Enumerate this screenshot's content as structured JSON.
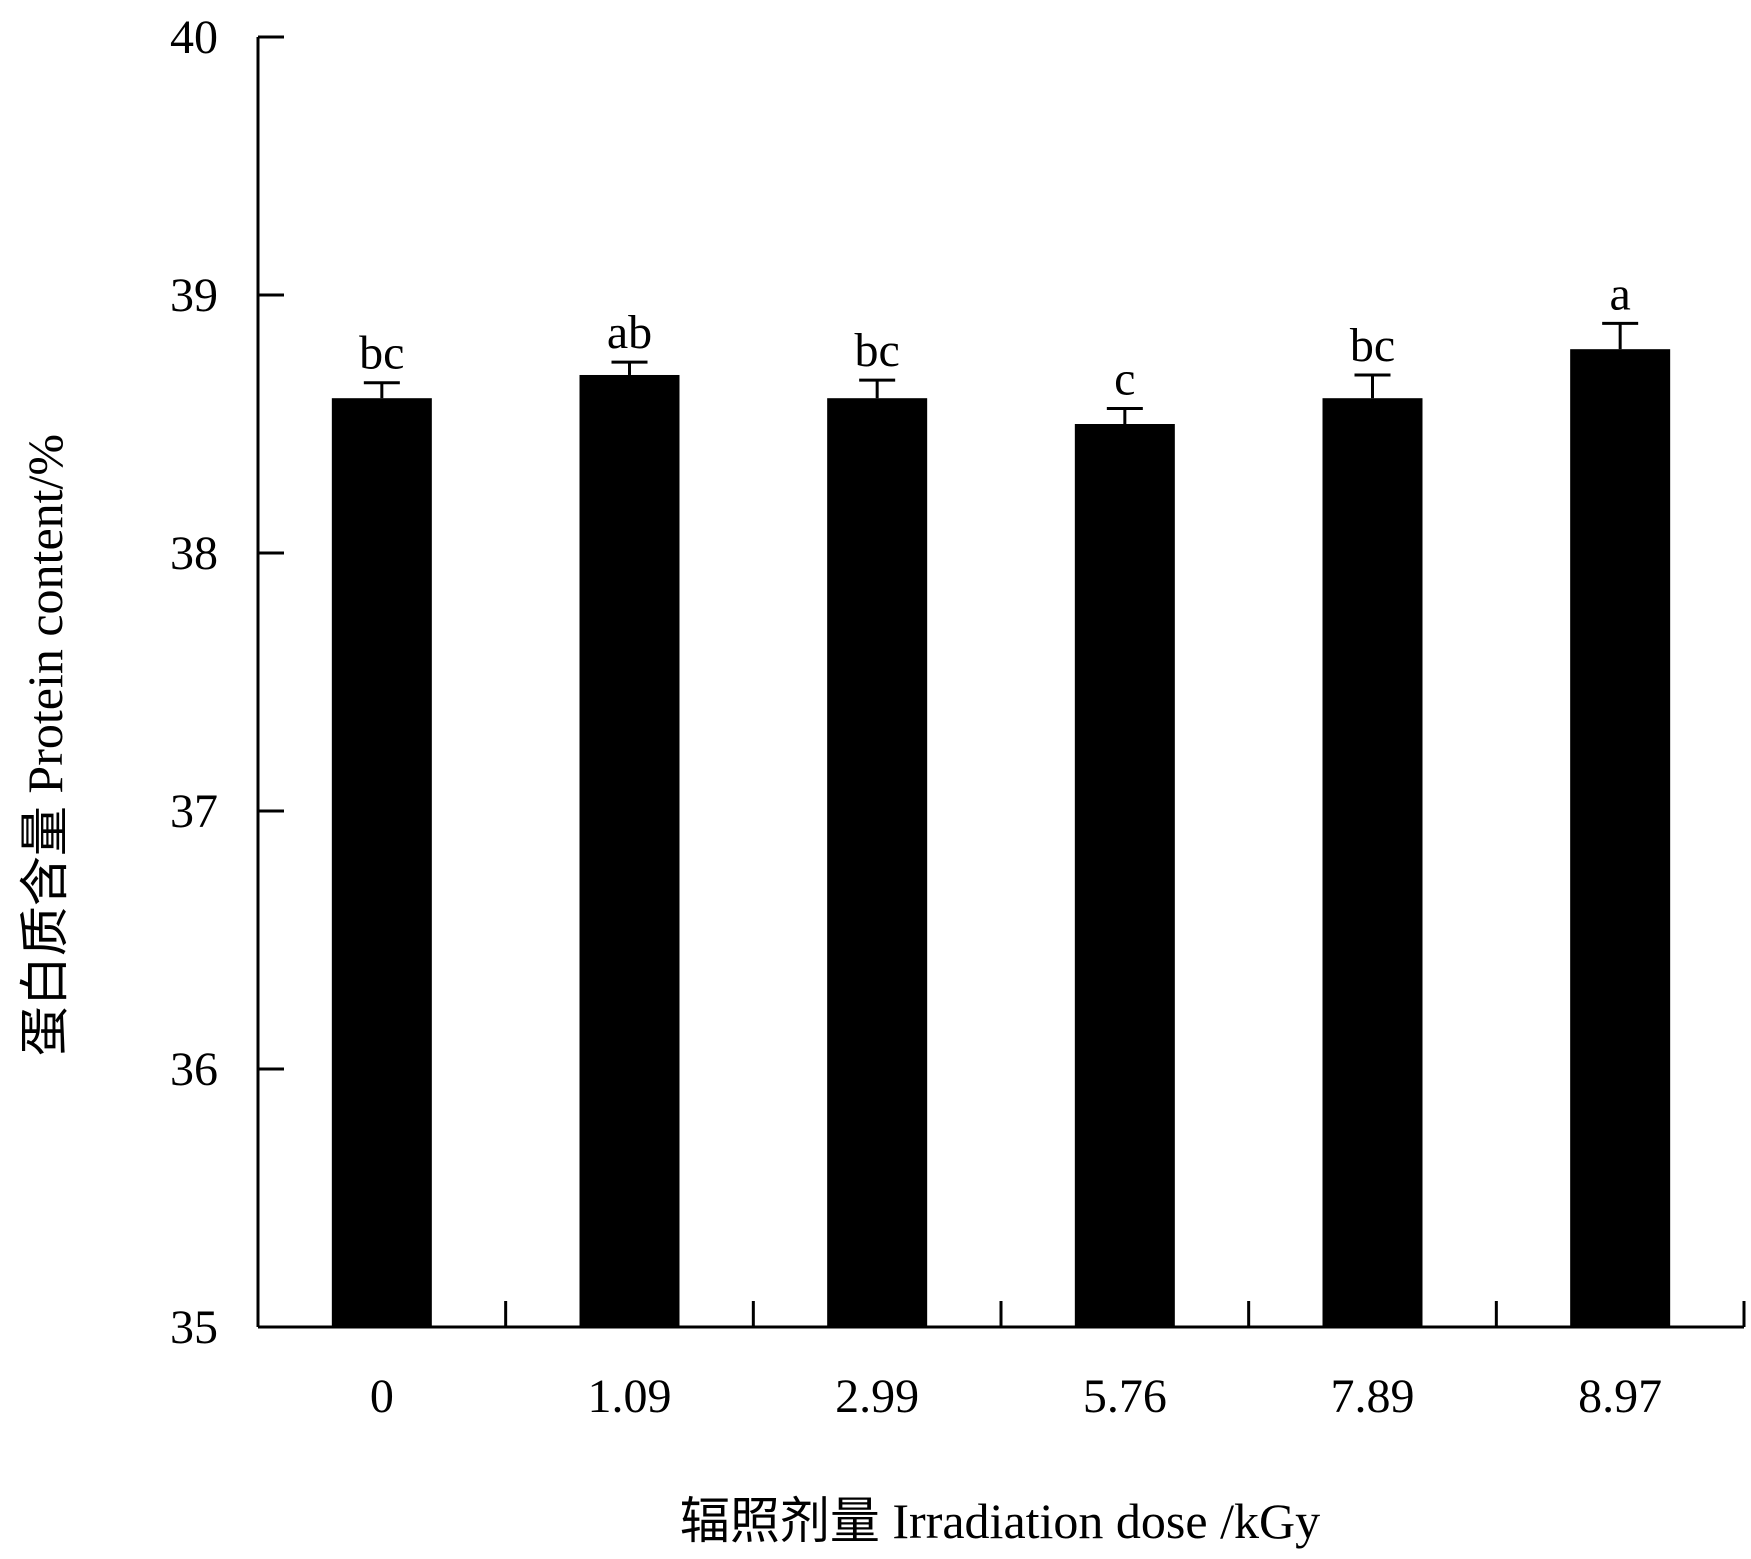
{
  "chart_data": {
    "type": "bar",
    "title": "",
    "xlabel": "辐照剂量 Irradiation dose /kGy",
    "ylabel": "蛋白质含量  Protein content/%",
    "categories": [
      "0",
      "1.09",
      "2.99",
      "5.76",
      "7.89",
      "8.97"
    ],
    "values": [
      38.6,
      38.69,
      38.6,
      38.5,
      38.6,
      38.79
    ],
    "errors": [
      0.06,
      0.05,
      0.07,
      0.06,
      0.09,
      0.1
    ],
    "significance": [
      "bc",
      "ab",
      "bc",
      "c",
      "bc",
      "a"
    ],
    "ylim": [
      35,
      40
    ],
    "yticks": [
      35,
      36,
      37,
      38,
      39,
      40
    ],
    "grid": false,
    "legend": "none",
    "bar_color": "#000000"
  }
}
